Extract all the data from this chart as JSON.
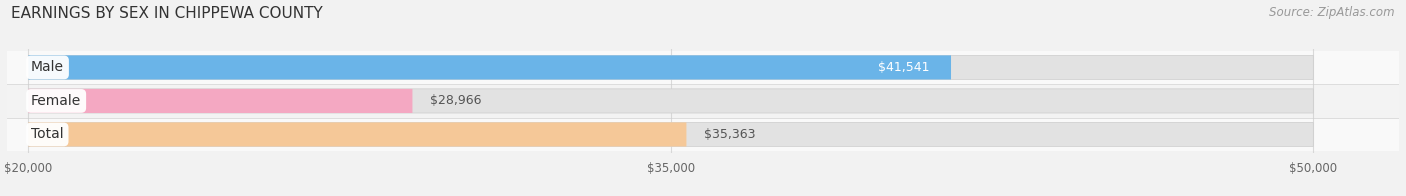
{
  "title": "EARNINGS BY SEX IN CHIPPEWA COUNTY",
  "source": "Source: ZipAtlas.com",
  "categories": [
    "Male",
    "Female",
    "Total"
  ],
  "values": [
    41541,
    28966,
    35363
  ],
  "bar_colors": [
    "#6ab4e8",
    "#f4a8c2",
    "#f5c898"
  ],
  "value_labels": [
    "$41,541",
    "$28,966",
    "$35,363"
  ],
  "value_inside": [
    true,
    false,
    false
  ],
  "xmin": 20000,
  "xmax": 50000,
  "xticks": [
    20000,
    35000,
    50000
  ],
  "xtick_labels": [
    "$20,000",
    "$35,000",
    "$50,000"
  ],
  "background_color": "#f2f2f2",
  "bar_bg_color": "#e8e8e8",
  "row_bg_colors": [
    "#f8f8f8",
    "#f2f2f2",
    "#ececec"
  ],
  "title_fontsize": 11,
  "source_fontsize": 8.5,
  "label_fontsize": 10,
  "value_fontsize": 9
}
